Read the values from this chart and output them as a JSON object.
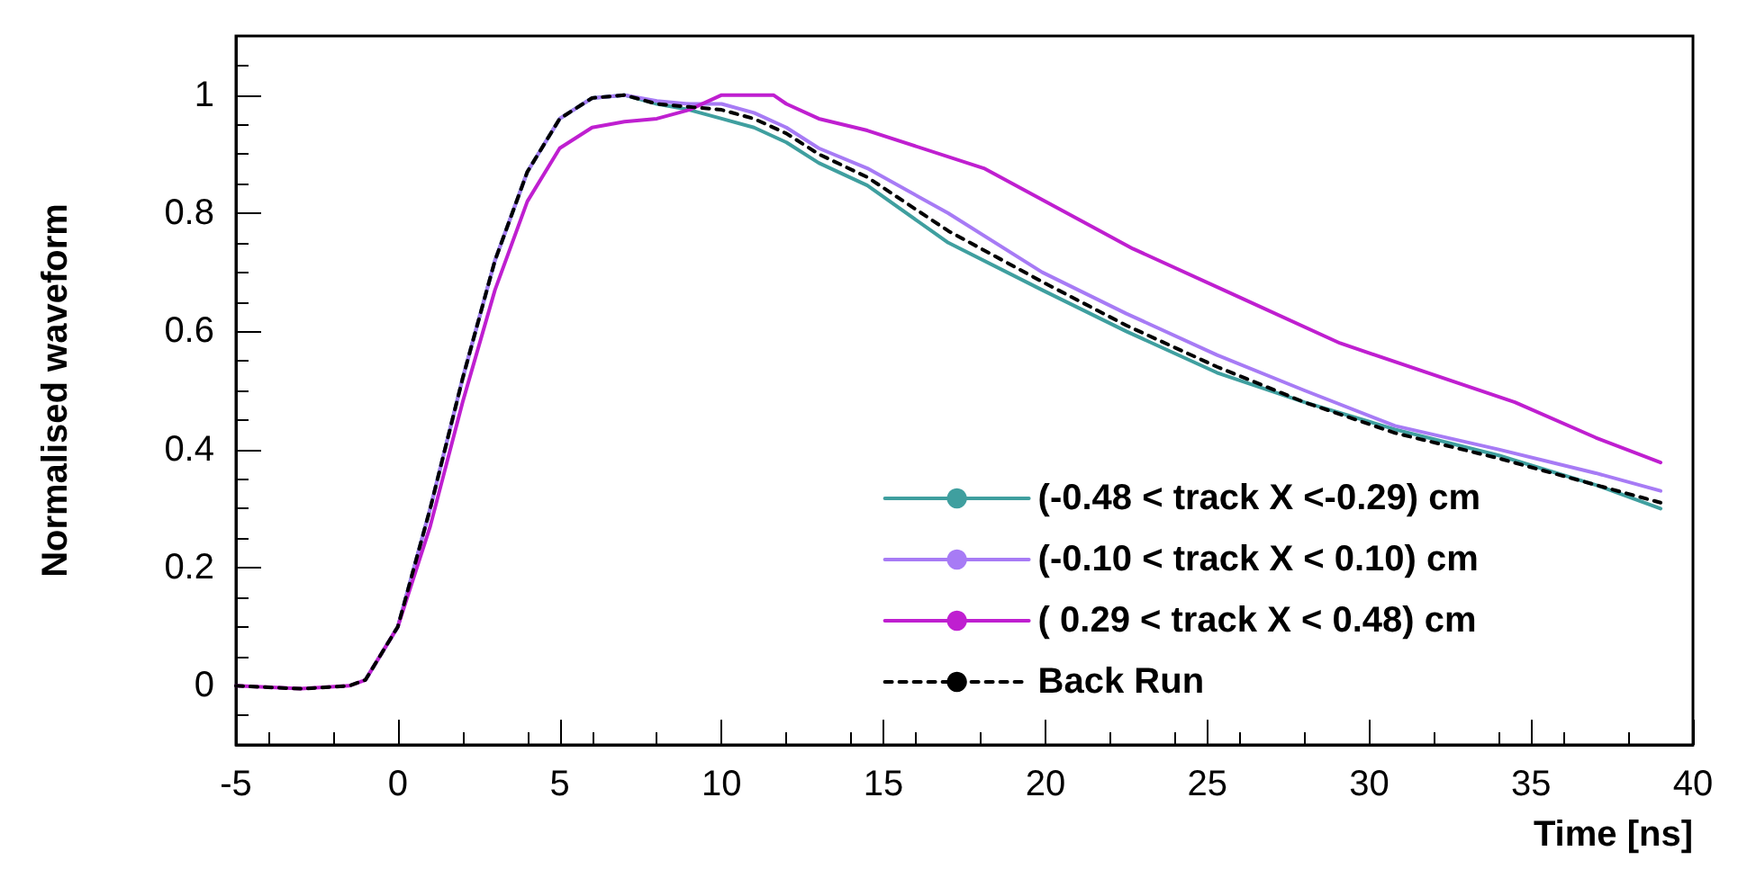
{
  "chart_data": {
    "type": "line",
    "xlabel": "Time [ns]",
    "ylabel": "Normalised waveform",
    "xlim": [
      -5,
      40
    ],
    "ylim": [
      -0.1,
      1.1
    ],
    "xticks": [
      -5,
      0,
      5,
      10,
      15,
      20,
      25,
      30,
      35,
      40
    ],
    "yticks": [
      0,
      0.2,
      0.4,
      0.6,
      0.8,
      1
    ],
    "grid": false,
    "legend": "bottom right",
    "marker": "none",
    "series": [
      {
        "name": "(-0.48 < track X <-0.29) cm",
        "color": "#3f9f9f",
        "line_style": "solid",
        "x": [
          -1,
          0,
          1,
          2,
          3,
          4,
          5,
          6,
          7,
          8,
          9,
          10,
          11,
          12,
          13,
          14.5,
          17,
          19.9,
          22.5,
          25.3,
          28,
          30.8,
          34,
          37,
          39
        ],
        "values": [
          0.01,
          0.1,
          0.3,
          0.52,
          0.72,
          0.87,
          0.96,
          0.995,
          1,
          0.985,
          0.975,
          0.96,
          0.945,
          0.92,
          0.885,
          0.847,
          0.75,
          0.67,
          0.6,
          0.53,
          0.48,
          0.434,
          0.39,
          0.34,
          0.3
        ]
      },
      {
        "name": "(-0.10 < track X < 0.10) cm",
        "color": "#a77bf5",
        "line_style": "solid",
        "x": [
          -1,
          0,
          1,
          2,
          3,
          4,
          5,
          6,
          7,
          8,
          9,
          10,
          11,
          12,
          13,
          14.5,
          17,
          19.9,
          22.5,
          25.3,
          28,
          30.8,
          34,
          37,
          39
        ],
        "values": [
          0.01,
          0.1,
          0.3,
          0.52,
          0.72,
          0.87,
          0.96,
          0.995,
          1,
          0.99,
          0.985,
          0.985,
          0.97,
          0.945,
          0.91,
          0.876,
          0.8,
          0.7,
          0.63,
          0.56,
          0.5,
          0.44,
          0.4,
          0.36,
          0.33
        ]
      },
      {
        "name": "( 0.29 < track X < 0.48) cm",
        "color": "#bf1fd0",
        "line_style": "solid",
        "x": [
          -5,
          -3,
          -1.5,
          -1,
          0,
          1,
          2,
          3,
          4,
          5,
          6,
          7,
          8,
          9,
          10,
          11,
          11.6,
          12,
          13,
          14.5,
          18.1,
          22.7,
          25.9,
          29.1,
          34.5,
          37,
          39
        ],
        "values": [
          0,
          -0.005,
          0,
          0.01,
          0.1,
          0.27,
          0.48,
          0.67,
          0.82,
          0.91,
          0.945,
          0.955,
          0.96,
          0.975,
          1,
          1,
          1,
          0.985,
          0.96,
          0.94,
          0.876,
          0.74,
          0.66,
          0.58,
          0.48,
          0.42,
          0.378
        ]
      },
      {
        "name": "Back Run",
        "color": "#000000",
        "line_style": "dashed",
        "x": [
          -5,
          -3,
          -1.5,
          -1,
          0,
          1,
          2,
          3,
          4,
          5,
          6,
          7,
          8,
          9,
          10,
          11,
          12,
          13,
          14.5,
          17,
          19.9,
          22.5,
          25.3,
          28,
          30.8,
          34,
          37,
          39
        ],
        "values": [
          0,
          -0.005,
          0,
          0.01,
          0.1,
          0.3,
          0.52,
          0.72,
          0.87,
          0.96,
          0.995,
          1,
          0.985,
          0.98,
          0.975,
          0.96,
          0.935,
          0.9,
          0.861,
          0.77,
          0.684,
          0.61,
          0.54,
          0.48,
          0.428,
          0.385,
          0.34,
          0.31
        ]
      }
    ]
  }
}
